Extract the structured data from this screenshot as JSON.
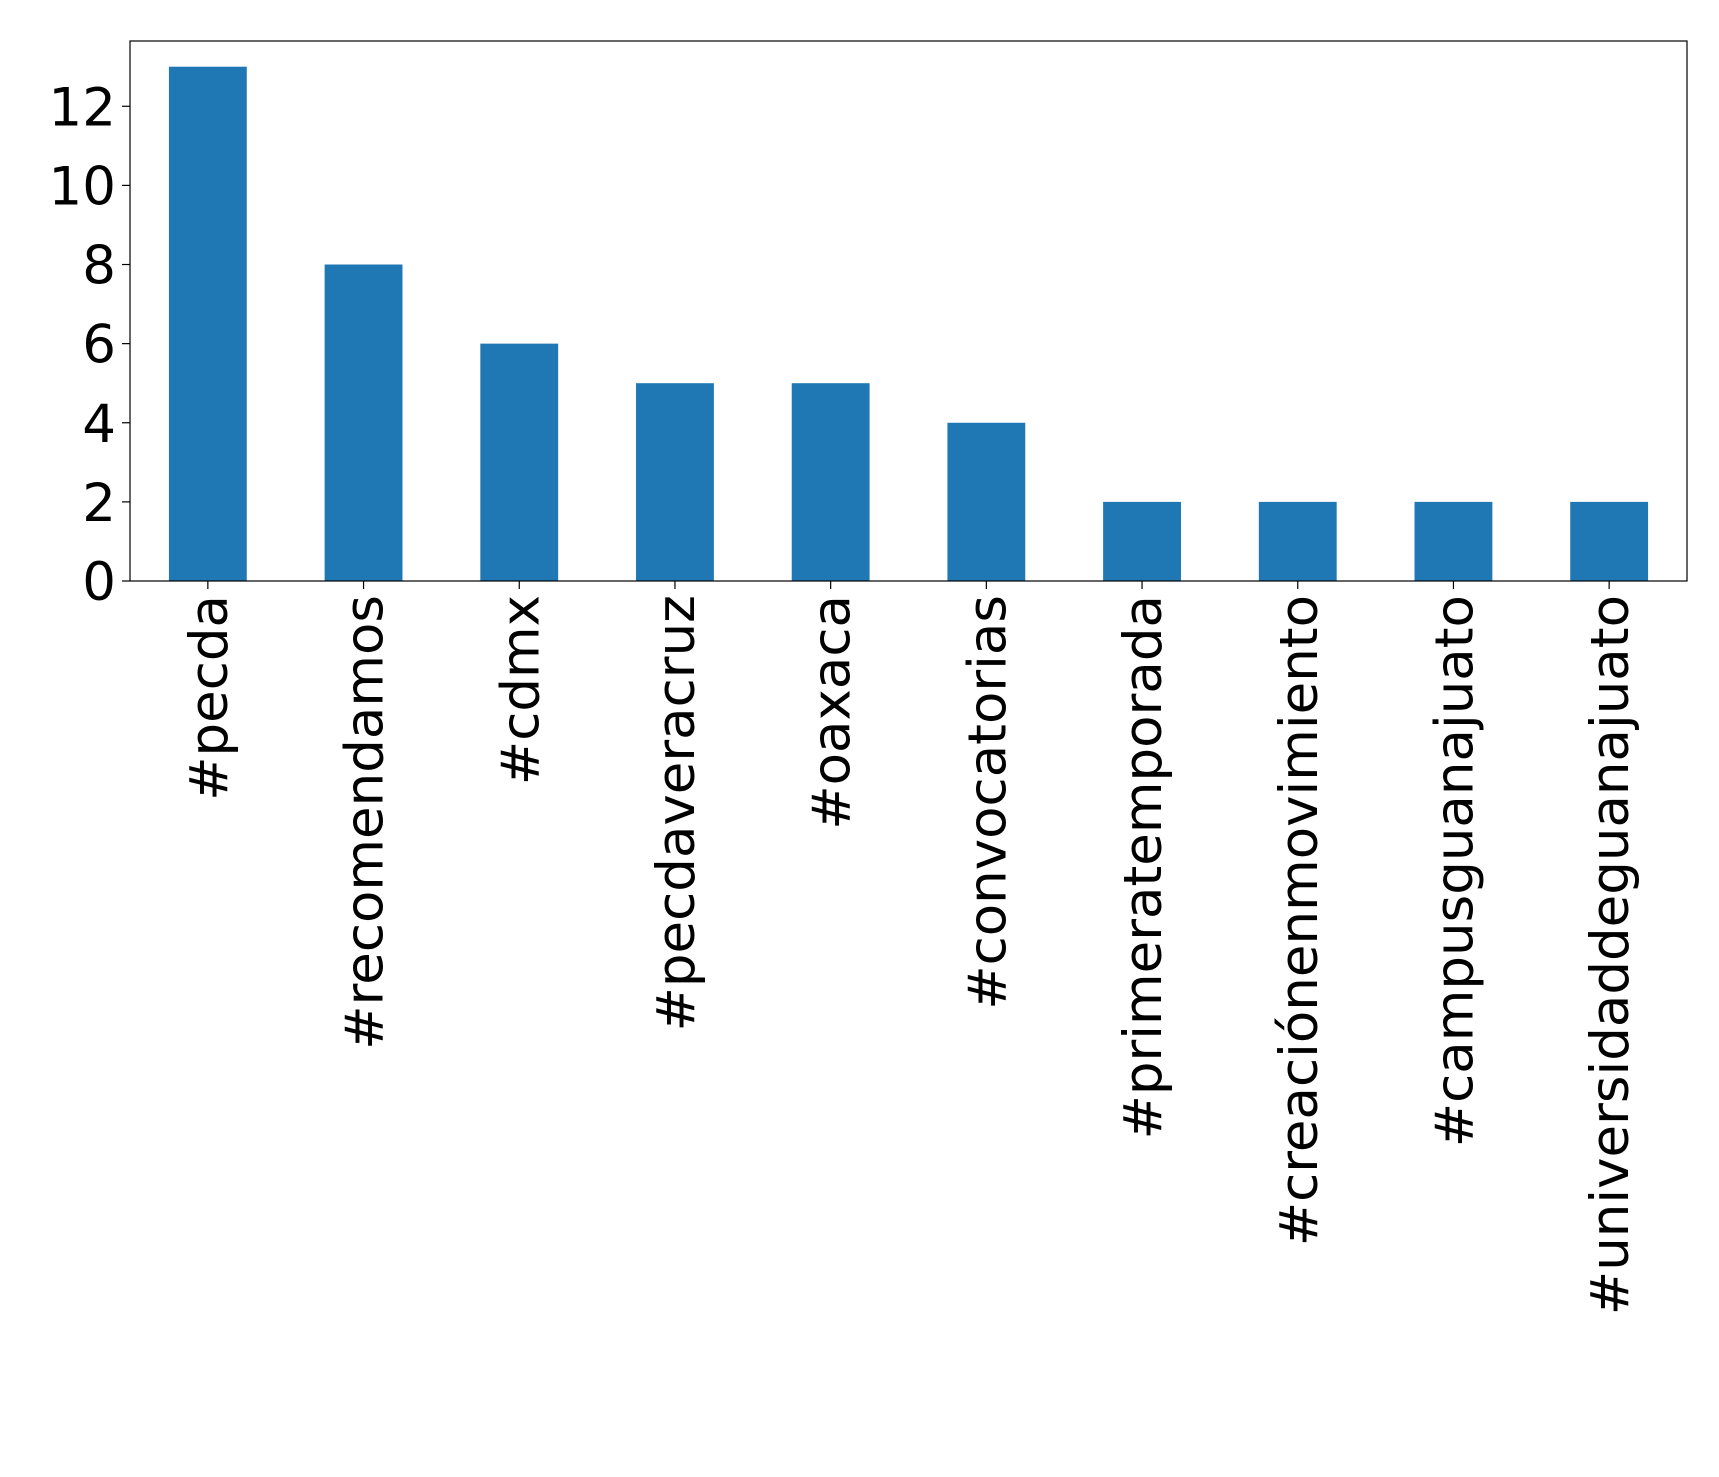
{
  "chart_data": {
    "type": "bar",
    "categories": [
      "#pecda",
      "#recomendamos",
      "#cdmx",
      "#pecdaveracruz",
      "#oaxaca",
      "#convocatorias",
      "#primeratemporada",
      "#creaciónenmovimiento",
      "#campusguanajuato",
      "#universidaddeguanajuato"
    ],
    "values": [
      13,
      8,
      6,
      5,
      5,
      4,
      2,
      2,
      2,
      2
    ],
    "color": "#1f77b4",
    "ylim": [
      0,
      13.65
    ],
    "yticks": [
      0,
      2,
      4,
      6,
      8,
      10,
      12
    ],
    "grid": false
  }
}
